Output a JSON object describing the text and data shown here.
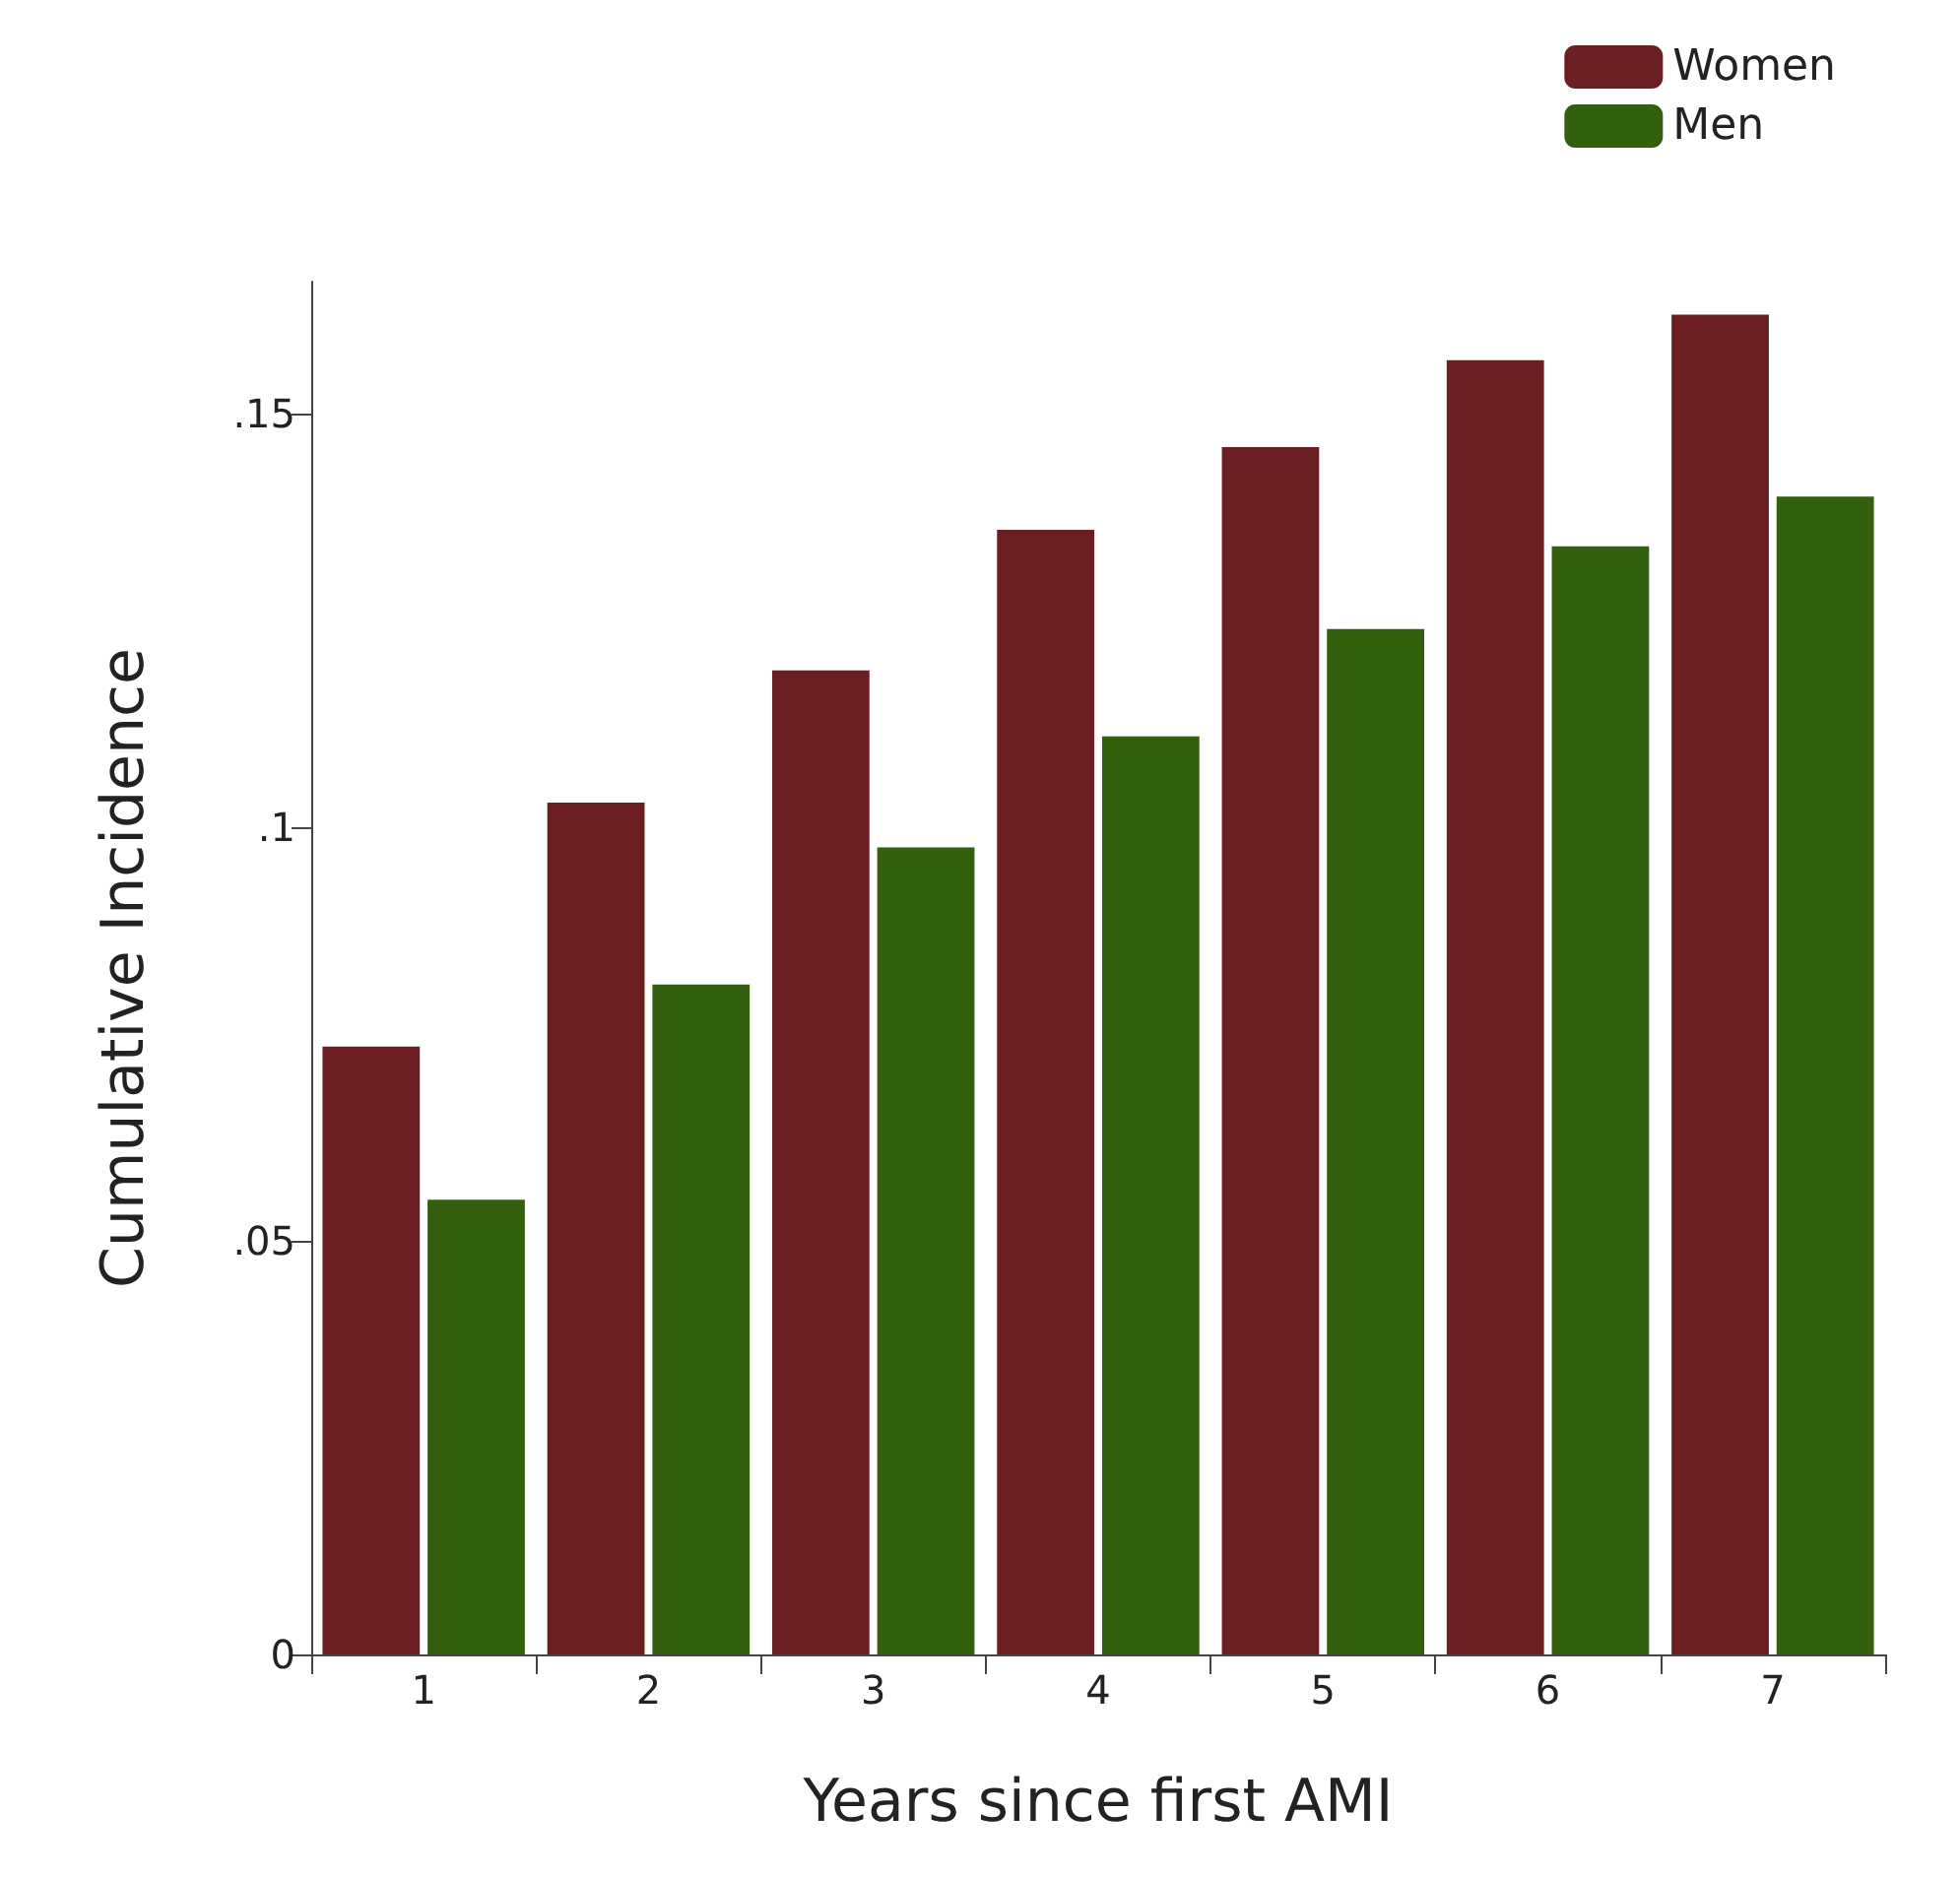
{
  "chart_data": {
    "type": "bar",
    "xlabel": "Years since first AMI",
    "ylabel": "Cumulative Incidence",
    "categories": [
      "1",
      "2",
      "3",
      "4",
      "5",
      "6",
      "7"
    ],
    "series": [
      {
        "name": "Women",
        "color": "#6b1f22",
        "values": [
          0.0735,
          0.103,
          0.119,
          0.136,
          0.146,
          0.1565,
          0.162
        ]
      },
      {
        "name": "Men",
        "color": "#33600f",
        "values": [
          0.055,
          0.081,
          0.0976,
          0.111,
          0.124,
          0.134,
          0.14
        ]
      }
    ],
    "ylim": [
      0,
      0.166
    ],
    "yticks": [
      {
        "value": 0,
        "label": "0"
      },
      {
        "value": 0.05,
        "label": ".05"
      },
      {
        "value": 0.1,
        "label": ".1"
      },
      {
        "value": 0.15,
        "label": ".15"
      }
    ],
    "grid": false,
    "legend": "top right"
  }
}
